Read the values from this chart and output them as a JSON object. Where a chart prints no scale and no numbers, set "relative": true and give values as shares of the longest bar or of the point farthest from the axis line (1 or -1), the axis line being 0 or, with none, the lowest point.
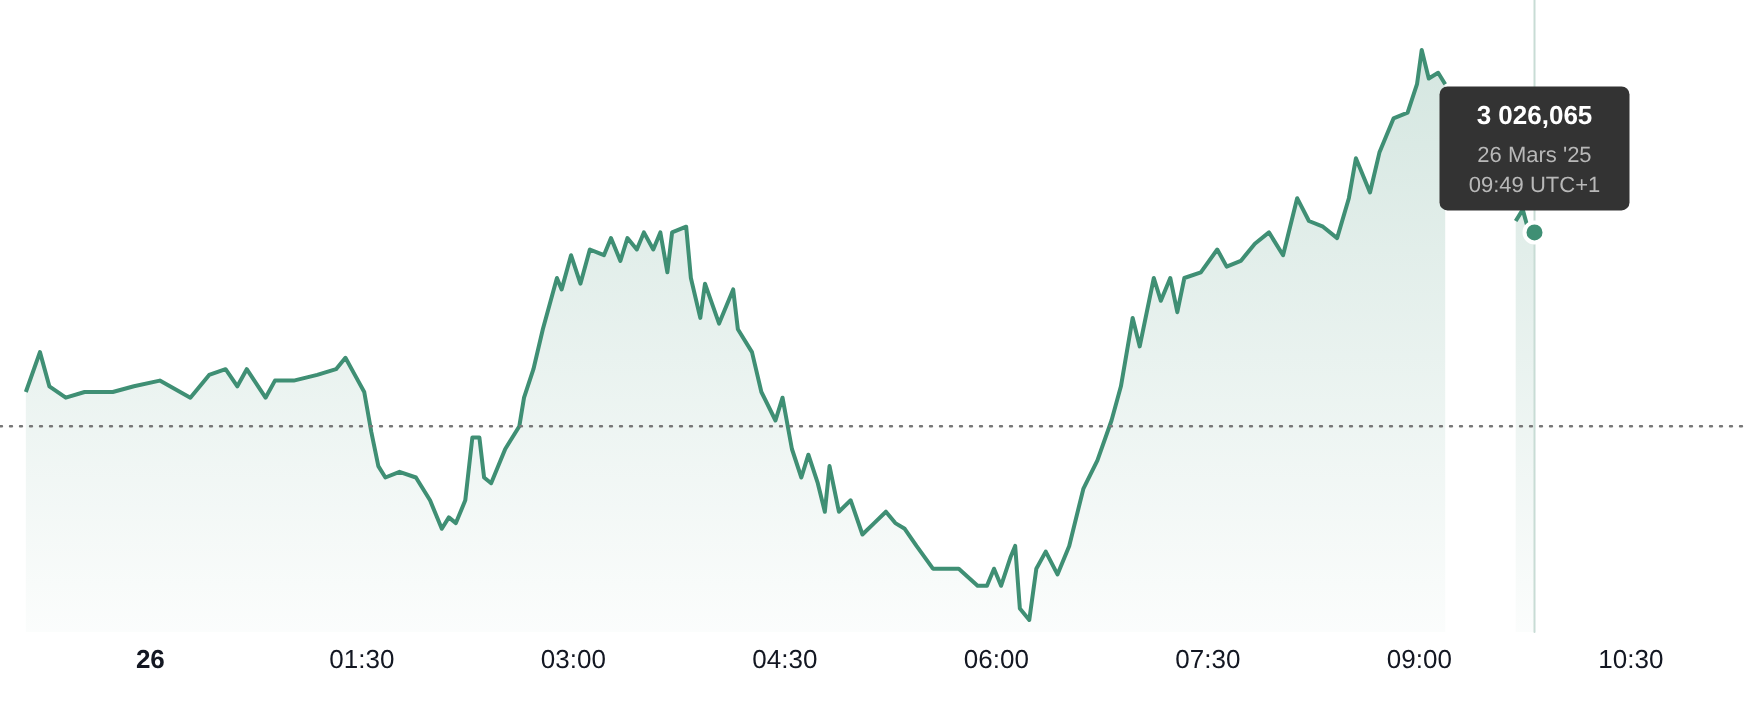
{
  "chart_data": {
    "type": "area",
    "relative": true,
    "color": "#3f8f74",
    "xlim": [
      "2025-03-25T22:56",
      "2025-03-26T11:19"
    ],
    "xticks": [
      {
        "value": "2025-03-26T00:00",
        "label": "26"
      },
      {
        "value": "2025-03-26T01:30",
        "label": "01:30"
      },
      {
        "value": "2025-03-26T03:00",
        "label": "03:00"
      },
      {
        "value": "2025-03-26T04:30",
        "label": "04:30"
      },
      {
        "value": "2025-03-26T06:00",
        "label": "06:00"
      },
      {
        "value": "2025-03-26T07:30",
        "label": "07:30"
      },
      {
        "value": "2025-03-26T09:00",
        "label": "09:00"
      },
      {
        "value": "2025-03-26T10:30",
        "label": "10:30"
      }
    ],
    "x": [
      "2025-03-25T23:07",
      "2025-03-25T23:13",
      "2025-03-25T23:17",
      "2025-03-25T23:24",
      "2025-03-25T23:32",
      "2025-03-25T23:38",
      "2025-03-25T23:44",
      "2025-03-25T23:53",
      "2025-03-26T00:04",
      "2025-03-26T00:17",
      "2025-03-26T00:25",
      "2025-03-26T00:32",
      "2025-03-26T00:37",
      "2025-03-26T00:41",
      "2025-03-26T00:49",
      "2025-03-26T00:53",
      "2025-03-26T01:01",
      "2025-03-26T01:11",
      "2025-03-26T01:19",
      "2025-03-26T01:23",
      "2025-03-26T01:27",
      "2025-03-26T01:31",
      "2025-03-26T01:34",
      "2025-03-26T01:37",
      "2025-03-26T01:40",
      "2025-03-26T01:46",
      "2025-03-26T01:53",
      "2025-03-26T01:59",
      "2025-03-26T02:04",
      "2025-03-26T02:07",
      "2025-03-26T02:10",
      "2025-03-26T02:14",
      "2025-03-26T02:17",
      "2025-03-26T02:20",
      "2025-03-26T02:22",
      "2025-03-26T02:25",
      "2025-03-26T02:31",
      "2025-03-26T02:37",
      "2025-03-26T02:39",
      "2025-03-26T02:43",
      "2025-03-26T02:47",
      "2025-03-26T02:53",
      "2025-03-26T02:55",
      "2025-03-26T02:59",
      "2025-03-26T03:03",
      "2025-03-26T03:07",
      "2025-03-26T03:13",
      "2025-03-26T03:16",
      "2025-03-26T03:20",
      "2025-03-26T03:23",
      "2025-03-26T03:27",
      "2025-03-26T03:30",
      "2025-03-26T03:34",
      "2025-03-26T03:37",
      "2025-03-26T03:40",
      "2025-03-26T03:42",
      "2025-03-26T03:48",
      "2025-03-26T03:50",
      "2025-03-26T03:54",
      "2025-03-26T03:56",
      "2025-03-26T04:02",
      "2025-03-26T04:08",
      "2025-03-26T04:10",
      "2025-03-26T04:16",
      "2025-03-26T04:20",
      "2025-03-26T04:26",
      "2025-03-26T04:29",
      "2025-03-26T04:33",
      "2025-03-26T04:37",
      "2025-03-26T04:40",
      "2025-03-26T04:44",
      "2025-03-26T04:47",
      "2025-03-26T04:49",
      "2025-03-26T04:53",
      "2025-03-26T04:58",
      "2025-03-26T05:03",
      "2025-03-26T05:08",
      "2025-03-26T05:13",
      "2025-03-26T05:17",
      "2025-03-26T05:21",
      "2025-03-26T05:26",
      "2025-03-26T05:33",
      "2025-03-26T05:38",
      "2025-03-26T05:44",
      "2025-03-26T05:52",
      "2025-03-26T05:56",
      "2025-03-26T05:59",
      "2025-03-26T06:02",
      "2025-03-26T06:06",
      "2025-03-26T06:08",
      "2025-03-26T06:10",
      "2025-03-26T06:14",
      "2025-03-26T06:17",
      "2025-03-26T06:21",
      "2025-03-26T06:26",
      "2025-03-26T06:31",
      "2025-03-26T06:37",
      "2025-03-26T06:43",
      "2025-03-26T06:49",
      "2025-03-26T06:53",
      "2025-03-26T06:58",
      "2025-03-26T07:01",
      "2025-03-26T07:07",
      "2025-03-26T07:10",
      "2025-03-26T07:14",
      "2025-03-26T07:17",
      "2025-03-26T07:20",
      "2025-03-26T07:27",
      "2025-03-26T07:34",
      "2025-03-26T07:38",
      "2025-03-26T07:44",
      "2025-03-26T07:50",
      "2025-03-26T07:56",
      "2025-03-26T08:02",
      "2025-03-26T08:08",
      "2025-03-26T08:13",
      "2025-03-26T08:19",
      "2025-03-26T08:25",
      "2025-03-26T08:30",
      "2025-03-26T08:33",
      "2025-03-26T08:39",
      "2025-03-26T08:43",
      "2025-03-26T08:49",
      "2025-03-26T08:55",
      "2025-03-26T08:59",
      "2025-03-26T09:01",
      "2025-03-26T09:04",
      "2025-03-26T09:08",
      "2025-03-26T09:11",
      "2025-03-26T09:27",
      "2025-03-26T09:41",
      "2025-03-26T09:44",
      "2025-03-26T09:46",
      "2025-03-26T09:49"
    ],
    "values": [
      0.4,
      0.47,
      0.41,
      0.39,
      0.4,
      0.4,
      0.4,
      0.41,
      0.42,
      0.39,
      0.43,
      0.44,
      0.41,
      0.44,
      0.39,
      0.42,
      0.42,
      0.43,
      0.44,
      0.46,
      0.43,
      0.4,
      0.33,
      0.27,
      0.25,
      0.26,
      0.25,
      0.21,
      0.16,
      0.18,
      0.17,
      0.21,
      0.32,
      0.32,
      0.25,
      0.24,
      0.3,
      0.34,
      0.39,
      0.44,
      0.51,
      0.6,
      0.58,
      0.64,
      0.59,
      0.65,
      0.64,
      0.67,
      0.63,
      0.67,
      0.65,
      0.68,
      0.65,
      0.68,
      0.61,
      0.68,
      0.69,
      0.6,
      0.53,
      0.59,
      0.52,
      0.58,
      0.51,
      0.47,
      0.4,
      0.35,
      0.39,
      0.3,
      0.25,
      0.29,
      0.24,
      0.19,
      0.27,
      0.19,
      0.21,
      0.15,
      0.17,
      0.19,
      0.17,
      0.16,
      0.13,
      0.09,
      0.09,
      0.09,
      0.06,
      0.06,
      0.09,
      0.06,
      0.11,
      0.13,
      0.02,
      0,
      0.09,
      0.12,
      0.08,
      0.13,
      0.23,
      0.28,
      0.35,
      0.41,
      0.53,
      0.48,
      0.6,
      0.56,
      0.6,
      0.54,
      0.6,
      0.61,
      0.65,
      0.62,
      0.63,
      0.66,
      0.68,
      0.64,
      0.74,
      0.7,
      0.69,
      0.67,
      0.74,
      0.81,
      0.75,
      0.82,
      0.88,
      0.89,
      0.94,
      1,
      0.95,
      0.96,
      0.94,
      null,
      0.7,
      0.72,
      0.69,
      0.68
    ],
    "ref_lines": [
      {
        "axis": "y",
        "value": 0.34,
        "line_style": "dotted",
        "color": "#777777"
      },
      {
        "axis": "x",
        "value": "2025-03-26T09:49",
        "line_style": "solid",
        "color": "#c8dcd5"
      }
    ],
    "annotations": [
      "3 026,065",
      "26 Mars '25",
      "09:49 UTC+1"
    ],
    "grid": false
  }
}
